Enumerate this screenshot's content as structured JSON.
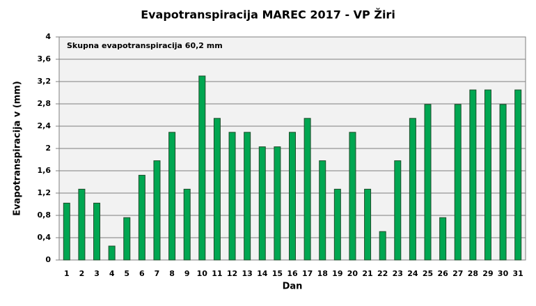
{
  "chart_data": {
    "type": "bar",
    "title": "Evapotranspiracija  MAREC 2017 - VP Žiri",
    "annotation": "Skupna evapotranspiracija  60,2 mm",
    "x_label": "Dan",
    "y_label": "Evapotranspiracija v  (mm)",
    "categories": [
      "1",
      "2",
      "3",
      "4",
      "5",
      "6",
      "7",
      "8",
      "9",
      "10",
      "11",
      "12",
      "13",
      "14",
      "15",
      "16",
      "17",
      "18",
      "19",
      "20",
      "21",
      "22",
      "23",
      "24",
      "25",
      "26",
      "27",
      "28",
      "29",
      "30",
      "31"
    ],
    "values": [
      1.02,
      1.27,
      1.02,
      0.25,
      0.76,
      1.52,
      1.78,
      2.29,
      1.27,
      3.3,
      2.54,
      2.29,
      2.29,
      2.03,
      2.03,
      2.29,
      2.54,
      1.78,
      1.27,
      2.29,
      1.27,
      0.51,
      1.78,
      2.54,
      2.79,
      0.76,
      2.79,
      3.05,
      3.05,
      2.79,
      3.05
    ],
    "color": "#00a651",
    "ylim": [
      0,
      4
    ],
    "yticks": [
      0,
      {
        "value": 0.4,
        "label": "0,4"
      },
      {
        "value": 0.8,
        "label": "0,8"
      },
      {
        "value": 1.2,
        "label": "1,2"
      },
      {
        "value": 1.6,
        "label": "1,6"
      },
      2,
      {
        "value": 2.4,
        "label": "2,4"
      },
      {
        "value": 2.8,
        "label": "2,8"
      },
      {
        "value": 3.2,
        "label": "3,2"
      },
      {
        "value": 3.6,
        "label": "3,6"
      },
      4
    ],
    "grid": true
  }
}
